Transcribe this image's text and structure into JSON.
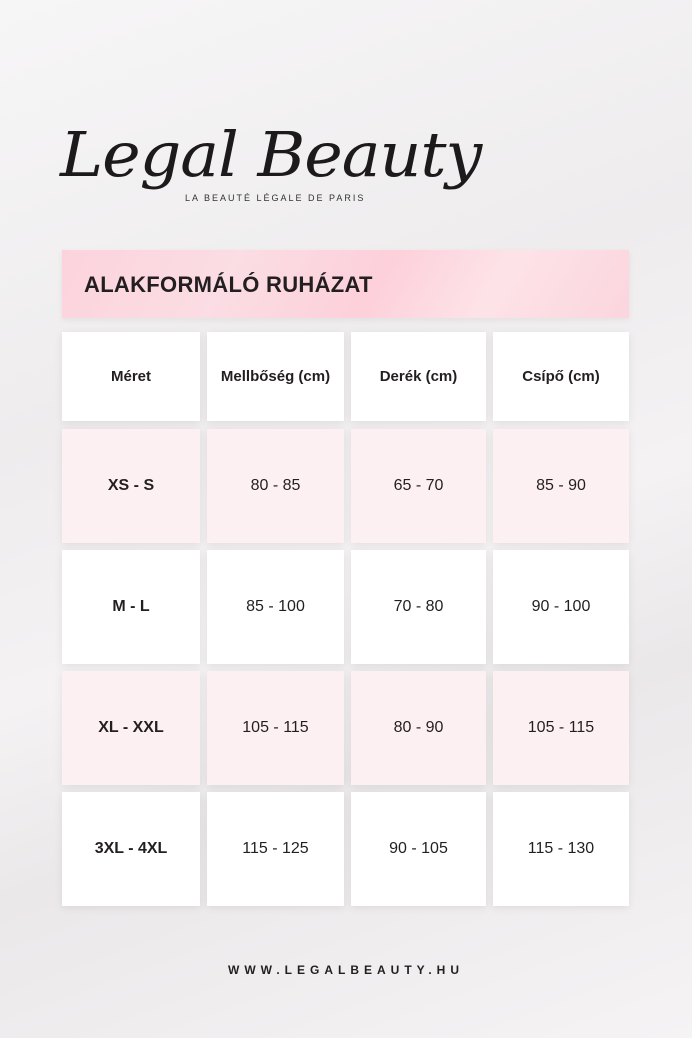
{
  "logo": {
    "name": "Legal Beauty",
    "tagline": "LA BEAUTÉ LÉGALE DE PARIS"
  },
  "title": "ALAKFORMÁLÓ RUHÁZAT",
  "table": {
    "headers": [
      "Méret",
      "Mellbőség (cm)",
      "Derék (cm)",
      "Csípő (cm)"
    ],
    "rows": [
      [
        "XS - S",
        "80 - 85",
        "65 - 70",
        "85 - 90"
      ],
      [
        "M - L",
        "85 - 100",
        "70 - 80",
        "90 - 100"
      ],
      [
        "XL - XXL",
        "105 - 115",
        "80 - 90",
        "105 - 115"
      ],
      [
        "3XL - 4XL",
        "115 - 125",
        "90 - 105",
        "115 - 130"
      ]
    ]
  },
  "footer": "WWW.LEGALBEAUTY.HU",
  "colors": {
    "banner": "#fcd3dc",
    "pink_row": "#fdf0f3",
    "text": "#231f20"
  }
}
